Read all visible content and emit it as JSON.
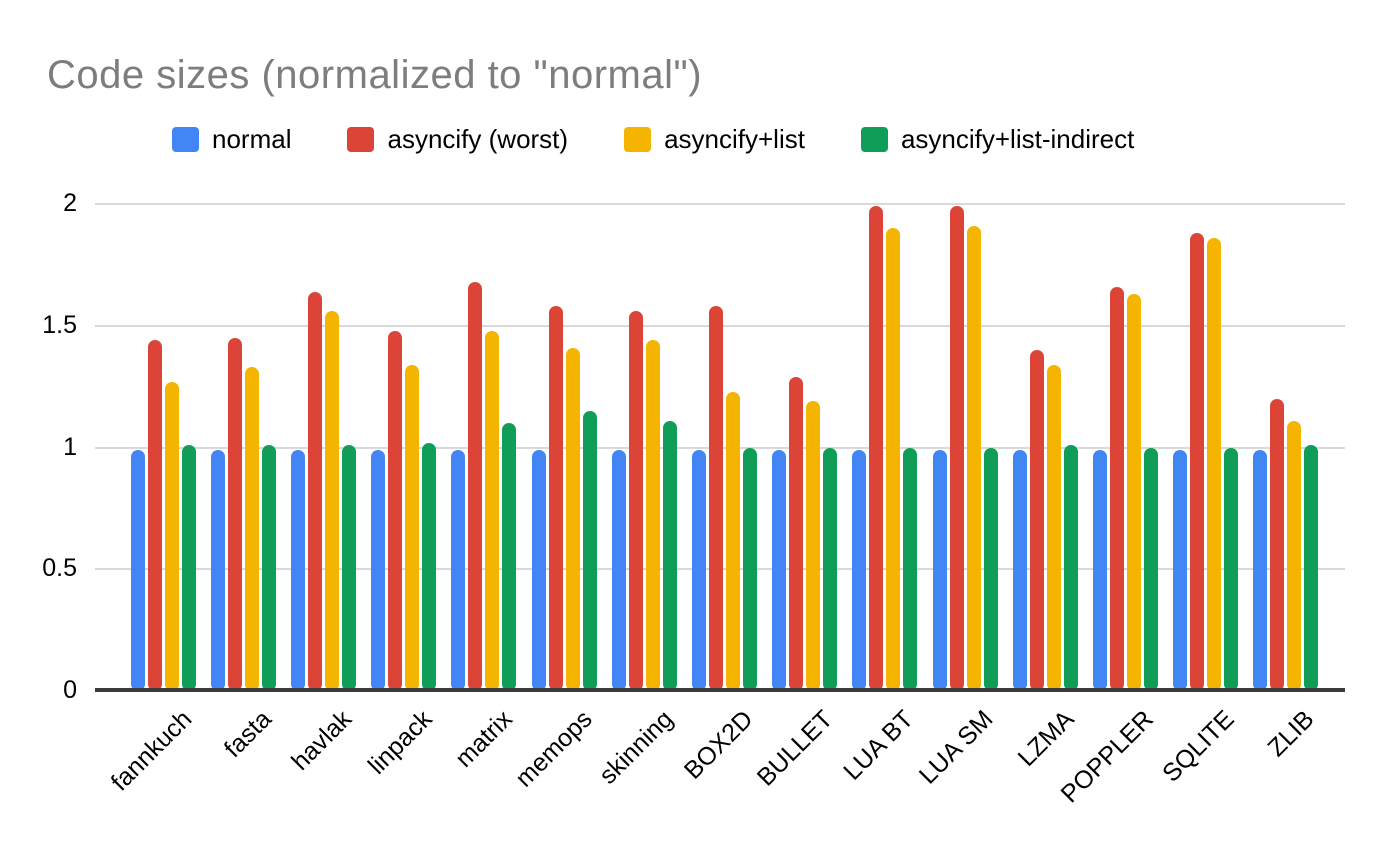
{
  "chart_data": {
    "type": "bar",
    "title": "Code sizes (normalized to \"normal\")",
    "categories": [
      "fannkuch",
      "fasta",
      "havlak",
      "linpack",
      "matrix",
      "memops",
      "skinning",
      "BOX2D",
      "BULLET",
      "LUA BT",
      "LUA SM",
      "LZMA",
      "POPPLER",
      "SQLITE",
      "ZLIB"
    ],
    "series": [
      {
        "name": "normal",
        "color": "#4285F4",
        "values": [
          0.99,
          0.99,
          0.99,
          0.99,
          0.99,
          0.99,
          0.99,
          0.99,
          0.99,
          0.99,
          0.99,
          0.99,
          0.99,
          0.99,
          0.99
        ]
      },
      {
        "name": "asyncify (worst)",
        "color": "#DB4437",
        "values": [
          1.44,
          1.45,
          1.64,
          1.48,
          1.68,
          1.58,
          1.56,
          1.58,
          1.29,
          1.99,
          1.99,
          1.4,
          1.66,
          1.88,
          1.2
        ]
      },
      {
        "name": "asyncify+list",
        "color": "#F4B400",
        "values": [
          1.27,
          1.33,
          1.56,
          1.34,
          1.48,
          1.41,
          1.44,
          1.23,
          1.19,
          1.9,
          1.91,
          1.34,
          1.63,
          1.86,
          1.11
        ]
      },
      {
        "name": "asyncify+list-indirect",
        "color": "#0F9D58",
        "values": [
          1.01,
          1.01,
          1.01,
          1.02,
          1.1,
          1.15,
          1.11,
          1.0,
          1.0,
          1.0,
          1.0,
          1.01,
          1.0,
          1.0,
          1.01
        ]
      }
    ],
    "xlabel": "",
    "ylabel": "",
    "y_axis": {
      "min": 0,
      "max": 2,
      "ticks": [
        0,
        0.5,
        1,
        1.5,
        2
      ],
      "tick_labels": [
        "0",
        "0.5",
        "1",
        "1.5",
        "2"
      ]
    },
    "grid": true,
    "legend_position": "top",
    "colors": {
      "title_text": "#7d7d7d",
      "axis_text": "#000000",
      "gridline": "#d9d9d9",
      "baseline": "#3b3b3b",
      "background": "#ffffff"
    }
  }
}
